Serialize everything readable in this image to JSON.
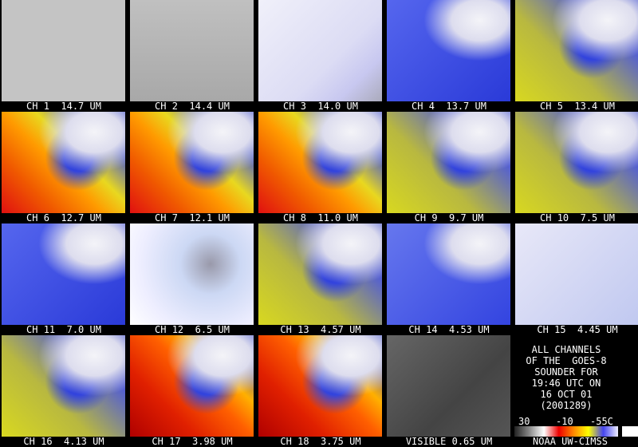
{
  "panels": [
    "CH 1  14.7 UM",
    "CH 2  14.4 UM",
    "CH 3  14.0 UM",
    "CH 4  13.7 UM",
    "CH 5  13.4 UM",
    "CH 6  12.7 UM",
    "CH 7  12.1 UM",
    "CH 8  11.0 UM",
    "CH 9  9.7 UM",
    "CH 10  7.5 UM",
    "CH 11  7.0 UM",
    "CH 12  6.5 UM",
    "CH 13  4.57 UM",
    "CH 14  4.53 UM",
    "CH 15  4.45 UM",
    "CH 16  4.13 UM",
    "CH 17  3.98 UM",
    "CH 18  3.75 UM",
    "VISIBLE 0.65 UM"
  ],
  "legend": {
    "lines": [
      "ALL CHANNELS",
      "OF THE  GOES-8",
      "SOUNDER FOR",
      "19:46 UTC ON",
      "16 OCT 01",
      "(2001289)"
    ],
    "scale": [
      "30",
      "-10",
      "-55C"
    ],
    "credit": "NOAA UW-CIMSS"
  }
}
